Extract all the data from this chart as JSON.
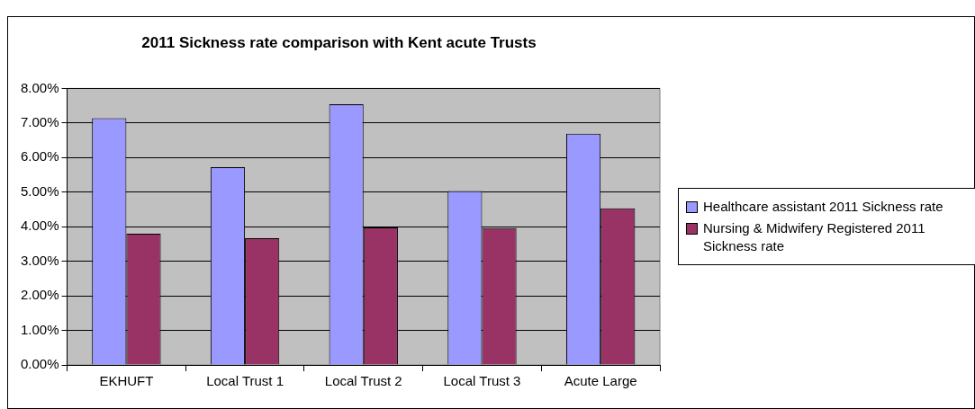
{
  "chart_data": {
    "type": "bar",
    "title": "2011 Sickness rate comparison with Kent acute Trusts",
    "categories": [
      "EKHUFT",
      "Local Trust 1",
      "Local Trust 2",
      "Local Trust 3",
      "Acute Large"
    ],
    "series": [
      {
        "name": "Healthcare assistant 2011 Sickness rate",
        "color": "#9999ff",
        "values": [
          7.14,
          5.72,
          7.54,
          5.03,
          6.69
        ]
      },
      {
        "name": "Nursing & Midwifery Registered 2011 Sickness rate",
        "color": "#993366",
        "values": [
          3.8,
          3.67,
          3.98,
          3.96,
          4.53
        ]
      }
    ],
    "ylim": [
      0,
      8
    ],
    "yticks": [
      {
        "value": 0,
        "label": "0.00%"
      },
      {
        "value": 1,
        "label": "1.00%"
      },
      {
        "value": 2,
        "label": "2.00%"
      },
      {
        "value": 3,
        "label": "3.00%"
      },
      {
        "value": 4,
        "label": "4.00%"
      },
      {
        "value": 5,
        "label": "5.00%"
      },
      {
        "value": 6,
        "label": "6.00%"
      },
      {
        "value": 7,
        "label": "7.00%"
      },
      {
        "value": 8,
        "label": "8.00%"
      }
    ],
    "grid": "y",
    "legend": "right"
  }
}
